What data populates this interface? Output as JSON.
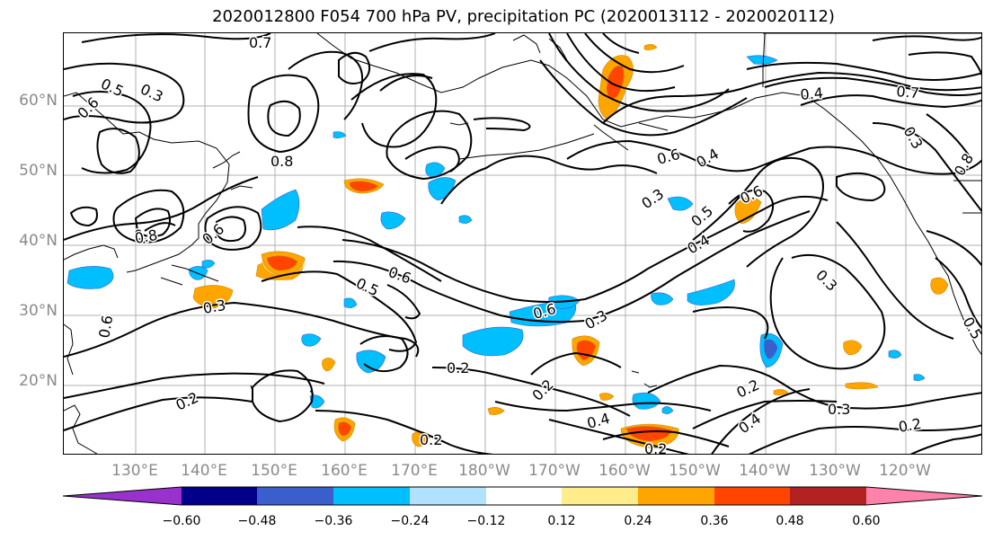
{
  "title": "2020012800 F054 700 hPa PV, precipitation PC (2020013112 - 2020020112)",
  "lat_labels": [
    "60°N",
    "50°N",
    "40°N",
    "30°N",
    "20°N"
  ],
  "lon_labels": [
    "130°E",
    "140°E",
    "150°E",
    "160°E",
    "170°E",
    "180°W",
    "170°W",
    "160°W",
    "150°W",
    "140°W",
    "130°W",
    "120°W"
  ],
  "contour_labels": [
    "0.7",
    "0.5",
    "0.3",
    "0.6",
    "0.8",
    "0.8",
    "0.6",
    "0.5",
    "0.2",
    "0.3",
    "0.6",
    "0.6",
    "0.3",
    "0.4",
    "0.5",
    "0.6",
    "0.3",
    "0.2",
    "0.2",
    "0.4",
    "0.2",
    "0.3",
    "0.2",
    "0.4",
    "0.2",
    "0.3",
    "0.2",
    "0.4",
    "0.5",
    "0.6",
    "0.8",
    "0.6",
    "0.7",
    "0.4",
    "0.8",
    "0.3"
  ],
  "colorbar": {
    "tick_labels": [
      "−0.60",
      "−0.48",
      "−0.36",
      "−0.24",
      "−0.12",
      "0.12",
      "0.24",
      "0.36",
      "0.48",
      "0.60"
    ],
    "colors": [
      "#9932cc",
      "#00008b",
      "#3a5fcd",
      "#00bfff",
      "#b0e2ff",
      "#ffffff",
      "#ffec8b",
      "#ffa500",
      "#ff4500",
      "#b22222",
      "#ff82ab"
    ]
  }
}
